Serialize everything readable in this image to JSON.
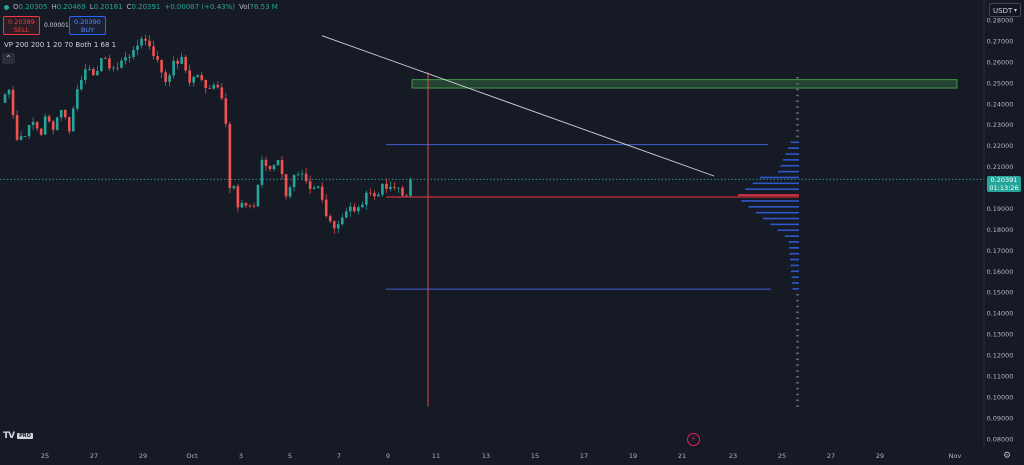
{
  "header": {
    "ohlc": [
      {
        "key": "O",
        "value": "0.20305"
      },
      {
        "key": "H",
        "value": "0.20469"
      },
      {
        "key": "L",
        "value": "0.20181"
      },
      {
        "key": "C",
        "value": "0.20391"
      }
    ],
    "change": "+0.00087 (+0.43%)",
    "volume_label": "Vol",
    "volume_value": "76.53 M"
  },
  "trade": {
    "sell_price": "0.20389",
    "sell_label": "SELL",
    "spread": "0.00001",
    "buy_price": "0.20390",
    "buy_label": "BUY"
  },
  "indicator_label": "VP 200 200 1 20 70 Both 1 68 1",
  "collapse_icon": "chevron-up-icon",
  "currency": "USDT",
  "last_price": {
    "price": "0.20391",
    "countdown": "01:13:26",
    "color": "#26a69a"
  },
  "y_labels": [
    "0.28000",
    "0.27000",
    "0.26000",
    "0.25000",
    "0.24000",
    "0.23000",
    "0.22000",
    "0.21000",
    "0.20000",
    "0.19000",
    "0.18000",
    "0.17000",
    "0.16000",
    "0.15000",
    "0.14000",
    "0.13000",
    "0.12000",
    "0.11000",
    "0.10000",
    "0.09000",
    "0.08000"
  ],
  "x_labels": [
    "25",
    "27",
    "29",
    "Oct",
    "3",
    "5",
    "7",
    "9",
    "11",
    "13",
    "15",
    "17",
    "19",
    "21",
    "23",
    "25",
    "27",
    "29",
    "Nov"
  ],
  "colors": {
    "bg": "#161a25",
    "up": "#26a69a",
    "down": "#ef5350",
    "zone": "#4caf50",
    "level": "#3f51b5",
    "poc": "#f23645",
    "trendline": "#d1d4dc"
  },
  "chart_data": {
    "type": "candlestick",
    "ylim": [
      0.08,
      0.28
    ],
    "drawings": {
      "resistance_zone": [
        0.2475,
        0.2515
      ],
      "upper_level": 0.2205,
      "lower_level": 0.1515,
      "poc_level": 0.1955,
      "trendline": {
        "from": [
          "Oct 6",
          0.2725
        ],
        "to": [
          "Oct 22",
          0.2055
        ]
      }
    },
    "last_close": 0.20391
  },
  "footer": {
    "logo": "TV",
    "logo_badge": "PRO",
    "bolt_icon": "⚡",
    "settings_icon": "⚙"
  }
}
